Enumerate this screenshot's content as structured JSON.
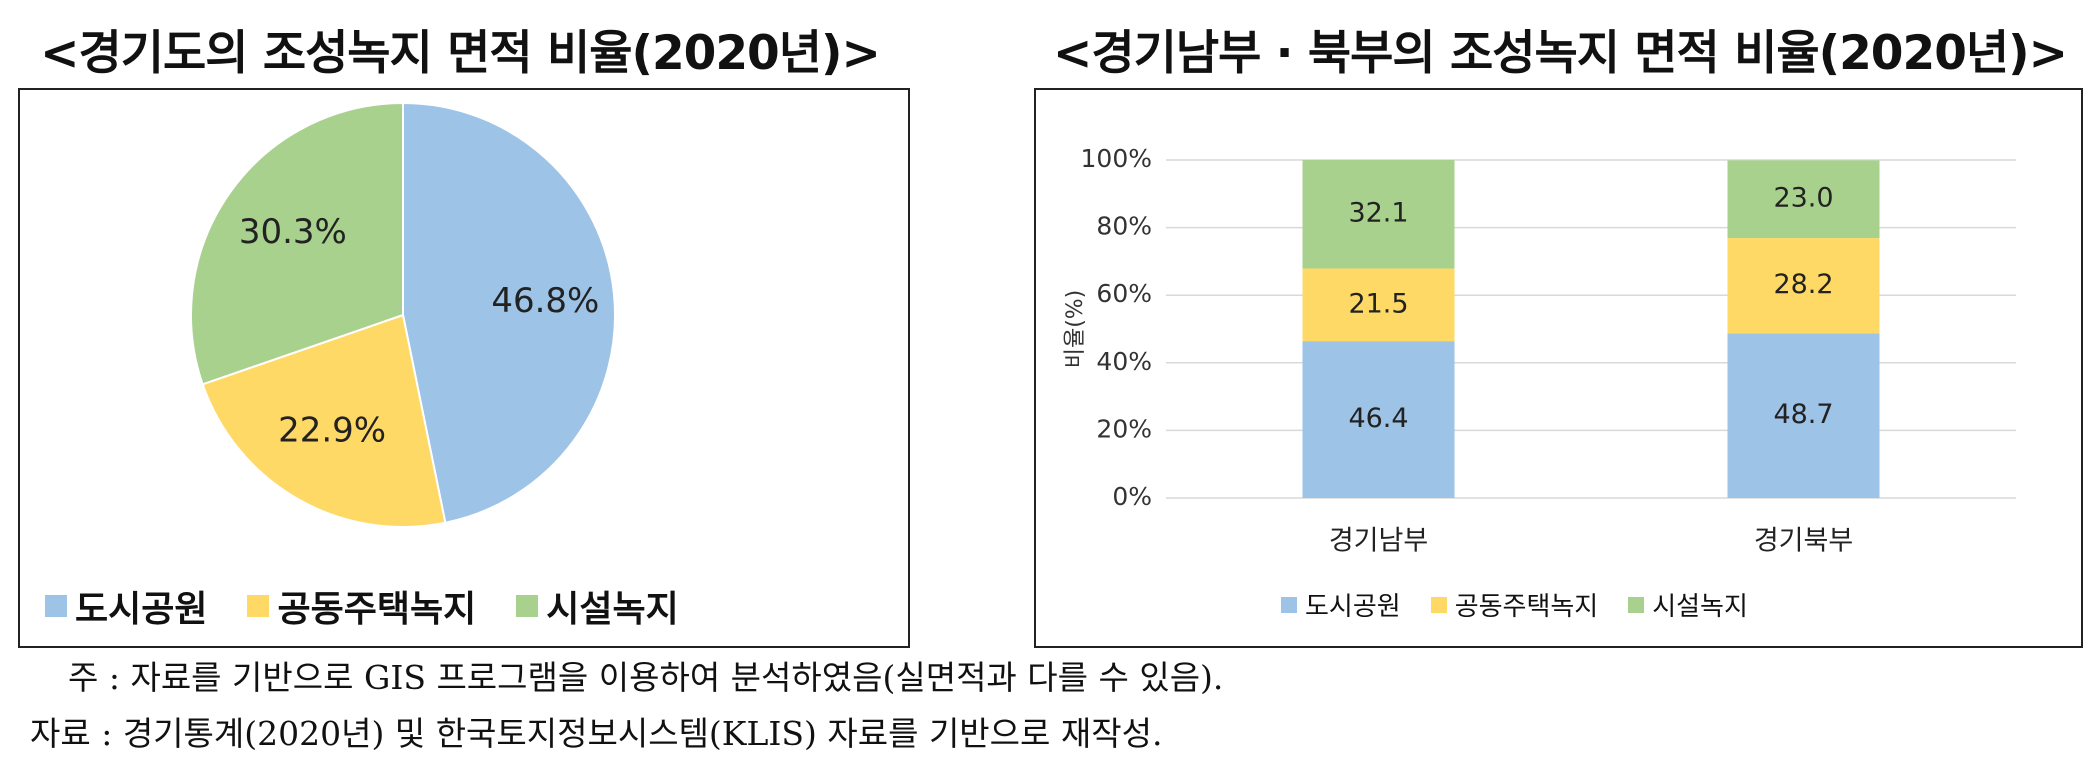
{
  "titles": {
    "left": "<경기도의 조성녹지 면적 비율(2020년)>",
    "right": "<경기남부 · 북부의 조성녹지 면적 비율(2020년)>"
  },
  "legend": {
    "items": [
      "도시공원",
      "공동주택녹지",
      "시설녹지"
    ]
  },
  "colors": {
    "urban_park": "#9dc3e6",
    "apartment_green": "#ffd966",
    "facility_green": "#a9d18e",
    "grid": "#d9d9d9"
  },
  "chart_data": [
    {
      "type": "pie",
      "title": "<경기도의 조성녹지 면적 비율(2020년)>",
      "categories": [
        "도시공원",
        "공동주택녹지",
        "시설녹지"
      ],
      "values": [
        46.8,
        22.9,
        30.3
      ],
      "labels": [
        "46.8%",
        "22.9%",
        "30.3%"
      ],
      "legend_position": "bottom-left"
    },
    {
      "type": "bar",
      "stacked": true,
      "title": "<경기남부 · 북부의 조성녹지 면적 비율(2020년)>",
      "categories": [
        "경기남부",
        "경기북부"
      ],
      "series": [
        {
          "name": "도시공원",
          "values": [
            46.4,
            48.7
          ]
        },
        {
          "name": "공동주택녹지",
          "values": [
            21.5,
            28.2
          ]
        },
        {
          "name": "시설녹지",
          "values": [
            32.1,
            23.0
          ]
        }
      ],
      "data_labels": [
        [
          "46.4",
          "48.7"
        ],
        [
          "21.5",
          "28.2"
        ],
        [
          "32.1",
          "23.0"
        ]
      ],
      "ylabel": "비율(%)",
      "yticks": [
        "0%",
        "20%",
        "40%",
        "60%",
        "80%",
        "100%"
      ],
      "ylim": [
        0,
        100
      ],
      "grid": true,
      "legend_position": "bottom"
    }
  ],
  "notes": {
    "note": "주 : 자료를 기반으로 GIS 프로그램을 이용하여 분석하였음(실면적과 다를 수 있음).",
    "source": "자료 : 경기통계(2020년) 및 한국토지정보시스템(KLIS) 자료를 기반으로 재작성."
  }
}
